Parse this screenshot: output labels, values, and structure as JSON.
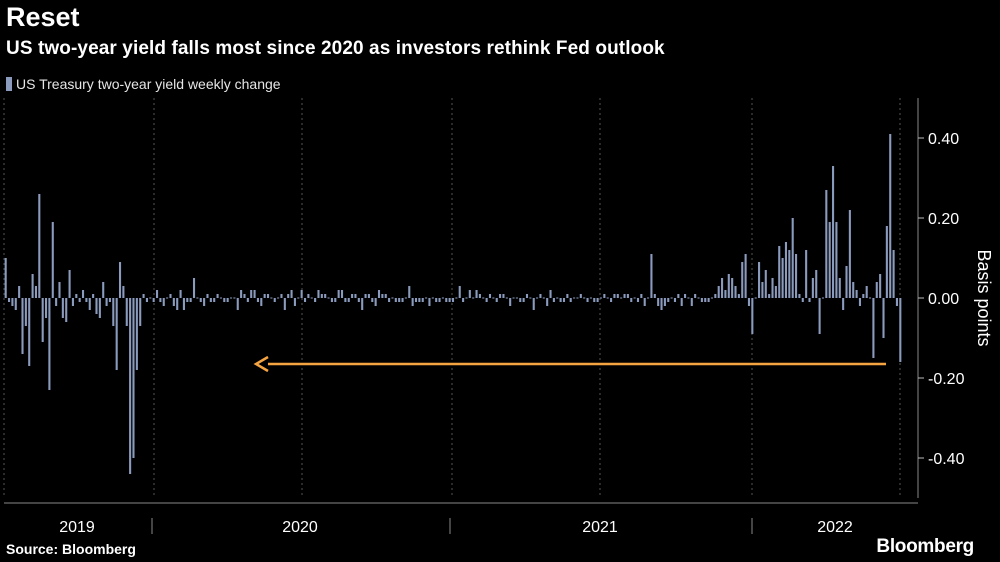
{
  "title": "Reset",
  "subtitle": "US two-year yield falls most since 2020 as investors rethink Fed outlook",
  "source": "Source: Bloomberg",
  "brand": "Bloomberg",
  "colors": {
    "bars": "#8a9bbd",
    "arrow": "#f5a442",
    "background": "#000000",
    "grid": "#555555"
  },
  "chart_data": {
    "type": "bar",
    "title": "Reset",
    "subtitle": "US two-year yield falls most since 2020 as investors rethink Fed outlook",
    "ylabel": "Basis points",
    "ylim": [
      -0.5,
      0.5
    ],
    "yticks": [
      -0.4,
      -0.2,
      0.0,
      0.2,
      0.4
    ],
    "ytick_labels": [
      "-0.40",
      "-0.20",
      "0.00",
      "0.20",
      "0.40"
    ],
    "year_labels": [
      "2019",
      "2020",
      "2021",
      "2022"
    ],
    "legend": "US Treasury two-year yield weekly change",
    "legend_position": "top-left",
    "grid": "vertical dashed at year boundaries",
    "annotation": "arrow pointing from latest week back to the March 2020 drop",
    "series": [
      {
        "name": "US Treasury two-year yield weekly change",
        "values": [
          0.1,
          -0.01,
          -0.02,
          -0.03,
          0.03,
          -0.14,
          -0.07,
          -0.17,
          0.06,
          0.03,
          0.26,
          -0.11,
          -0.05,
          -0.23,
          0.19,
          -0.02,
          0.04,
          -0.05,
          -0.06,
          0.07,
          -0.02,
          0.01,
          -0.01,
          0.02,
          -0.01,
          -0.03,
          0.01,
          -0.04,
          -0.05,
          0.04,
          -0.02,
          -0.01,
          -0.07,
          -0.18,
          0.09,
          0.03,
          -0.07,
          -0.44,
          -0.4,
          -0.18,
          -0.07,
          0.01,
          -0.01,
          0.0,
          -0.01,
          0.02,
          -0.01,
          -0.02,
          0.0,
          0.01,
          -0.02,
          -0.03,
          0.02,
          -0.03,
          -0.01,
          -0.01,
          0.05,
          0.0,
          -0.01,
          -0.02,
          0.01,
          -0.01,
          -0.01,
          0.01,
          0.0,
          -0.01,
          -0.01,
          0.0,
          0.0,
          -0.03,
          0.02,
          0.01,
          -0.01,
          0.02,
          0.02,
          -0.01,
          -0.02,
          0.01,
          0.01,
          0.0,
          -0.01,
          0.0,
          0.01,
          -0.03,
          0.01,
          0.02,
          -0.02,
          0.0,
          0.02,
          -0.01,
          0.01,
          0.0,
          -0.01,
          0.02,
          0.01,
          0.01,
          0.0,
          -0.01,
          -0.01,
          0.02,
          0.02,
          -0.01,
          -0.01,
          0.01,
          0.01,
          -0.01,
          -0.03,
          0.01,
          0.01,
          -0.01,
          -0.02,
          0.02,
          0.01,
          0.01,
          -0.01,
          0.0,
          -0.01,
          -0.01,
          -0.01,
          0.0,
          0.03,
          -0.02,
          -0.01,
          -0.01,
          -0.01,
          0.0,
          -0.02,
          0.0,
          -0.01,
          -0.01,
          0.0,
          -0.01,
          -0.01,
          -0.01,
          0.0,
          0.03,
          -0.01,
          0.0,
          0.02,
          0.0,
          0.02,
          0.01,
          0.0,
          -0.01,
          0.01,
          0.0,
          -0.01,
          0.01,
          0.01,
          0.0,
          -0.02,
          0.0,
          0.0,
          -0.01,
          -0.01,
          0.01,
          0.0,
          -0.03,
          0.0,
          0.01,
          0.0,
          -0.02,
          0.02,
          -0.01,
          0.0,
          -0.01,
          -0.01,
          0.01,
          -0.01,
          0.0,
          0.0,
          0.01,
          0.0,
          -0.01,
          0.0,
          -0.01,
          -0.01,
          0.0,
          0.01,
          0.0,
          -0.01,
          0.01,
          0.01,
          0.0,
          0.01,
          0.01,
          -0.01,
          0.0,
          -0.01,
          0.01,
          -0.02,
          0.0,
          0.11,
          0.01,
          -0.02,
          -0.03,
          -0.02,
          -0.01,
          0.0,
          -0.01,
          0.01,
          -0.02,
          0.01,
          0.0,
          -0.02,
          0.01,
          0.0,
          -0.01,
          -0.01,
          -0.01,
          0.0,
          0.01,
          0.03,
          0.05,
          0.02,
          0.06,
          0.05,
          0.03,
          0.01,
          0.09,
          0.11,
          -0.02,
          -0.09,
          0.0,
          0.09,
          0.04,
          0.07,
          0.01,
          0.05,
          0.03,
          0.13,
          0.1,
          0.14,
          0.12,
          0.2,
          0.11,
          0.01,
          -0.01,
          0.12,
          -0.01,
          0.05,
          0.07,
          -0.09,
          0.0,
          0.27,
          0.19,
          0.33,
          0.19,
          0.05,
          -0.03,
          0.08,
          0.22,
          0.04,
          0.02,
          -0.02,
          0.01,
          0.03,
          0.0,
          -0.15,
          0.04,
          0.06,
          -0.1,
          0.18,
          0.41,
          0.12,
          -0.02,
          -0.16
        ]
      }
    ]
  }
}
